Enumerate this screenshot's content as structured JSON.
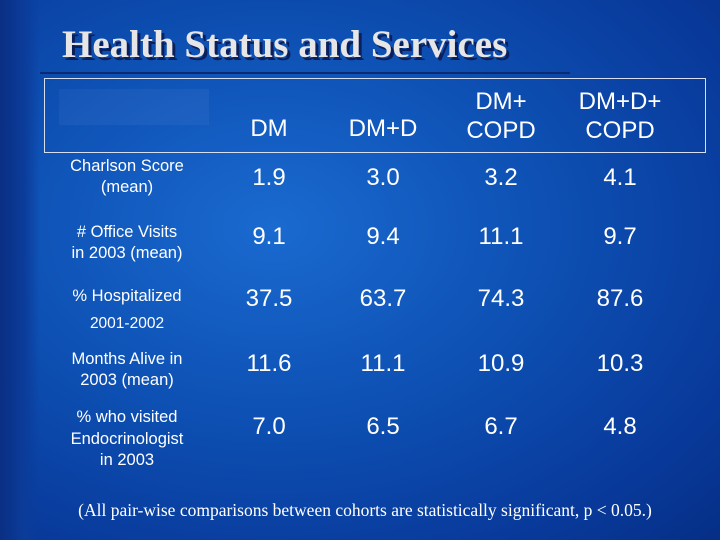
{
  "slide": {
    "title": "Health Status and Services",
    "footnote": "(All pair-wise comparisons between cohorts are statistically significant, p < 0.05.)"
  },
  "table": {
    "columns": [
      {
        "lines": [
          "DM"
        ]
      },
      {
        "lines": [
          "DM+D"
        ]
      },
      {
        "lines": [
          "DM+",
          "COPD"
        ]
      },
      {
        "lines": [
          "DM+D+",
          "COPD"
        ]
      }
    ],
    "rows": [
      {
        "label": [
          "Charlson Score",
          "(mean)"
        ],
        "values": [
          "1.9",
          "3.0",
          "3.2",
          "4.1"
        ]
      },
      {
        "label": [
          "# Office Visits",
          "in 2003 (mean)"
        ],
        "values": [
          "9.1",
          "9.4",
          "11.1",
          "9.7"
        ]
      },
      {
        "label": [
          "% Hospitalized",
          "2001-2002"
        ],
        "values": [
          "37.5",
          "63.7",
          "74.3",
          "87.6"
        ]
      },
      {
        "label": [
          "Months Alive in",
          "2003 (mean)"
        ],
        "values": [
          "11.6",
          "11.1",
          "10.9",
          "10.3"
        ]
      },
      {
        "label": [
          "% who visited",
          "Endocrinologist",
          "in 2003"
        ],
        "values": [
          "7.0",
          "6.5",
          "6.7",
          "4.8"
        ]
      }
    ]
  },
  "colors": {
    "background": "#0d4fb2",
    "text": "#ffffff",
    "title": "#e6e6e6"
  }
}
